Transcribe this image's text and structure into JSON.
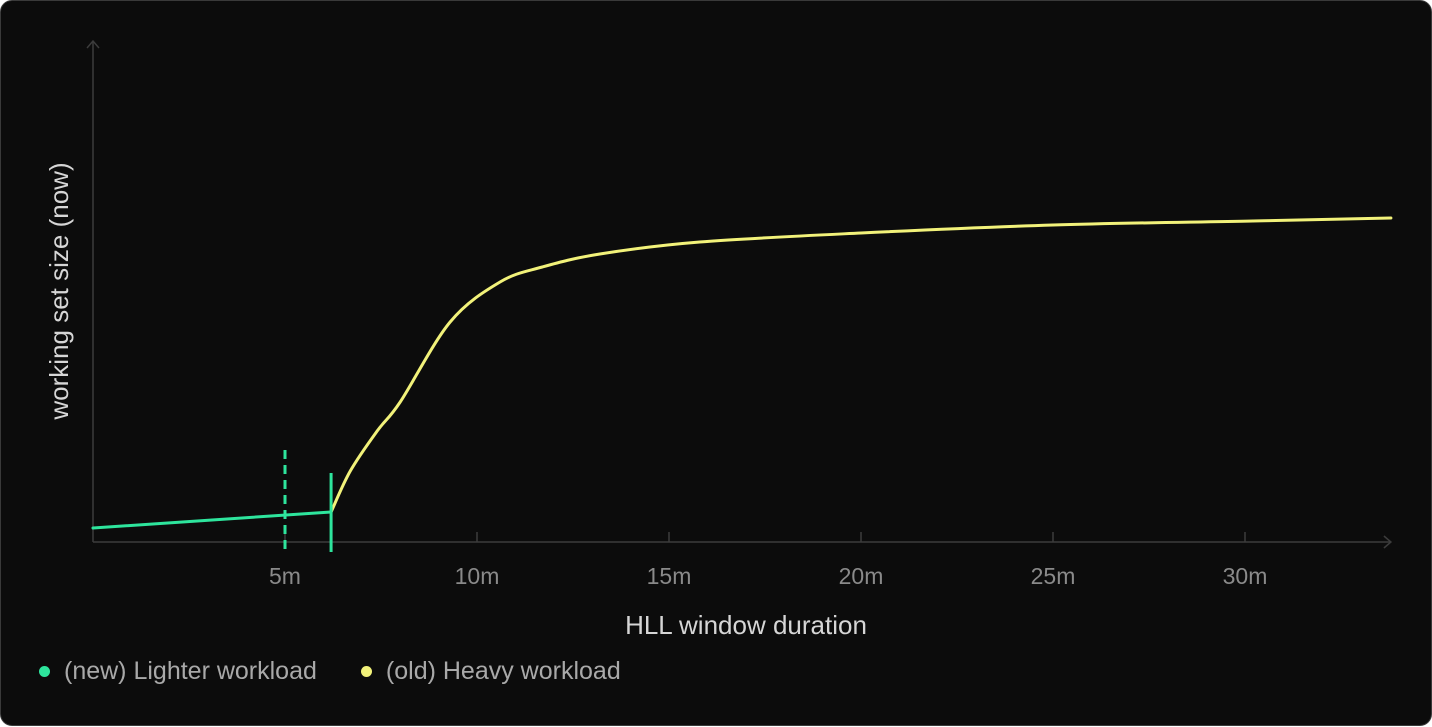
{
  "chart_data": {
    "type": "line",
    "title": "",
    "xlabel": "HLL window duration",
    "ylabel": "working set size (now)",
    "xlim": [
      0,
      33.8
    ],
    "ylim": [
      0,
      100
    ],
    "x_ticks": [
      5,
      10,
      15,
      20,
      25,
      30
    ],
    "x_tick_labels": [
      "5m",
      "10m",
      "15m",
      "20m",
      "25m",
      "30m"
    ],
    "y_ticks": [],
    "grid": false,
    "legend_placement": "bottom-left",
    "series": [
      {
        "name": "(new) Lighter workload",
        "color": "#2ee59d",
        "x": [
          0,
          6.2
        ],
        "y": [
          2.8,
          6.0
        ]
      },
      {
        "name": "(old) Heavy workload",
        "color": "#f2f27a",
        "x": [
          6.2,
          6.7,
          7.4,
          8.0,
          9.3,
          10.6,
          11.7,
          13.2,
          15.8,
          20,
          25,
          30.2,
          33.8
        ],
        "y": [
          6.0,
          14.2,
          22.2,
          28,
          44,
          52,
          55,
          57.6,
          60,
          61.8,
          63.4,
          64.2,
          64.8
        ]
      }
    ],
    "markers": [
      {
        "x": 5,
        "style": "dashed",
        "color": "#2ee59d"
      },
      {
        "x": 6.2,
        "style": "solid",
        "color": "#2ee59d"
      }
    ]
  }
}
